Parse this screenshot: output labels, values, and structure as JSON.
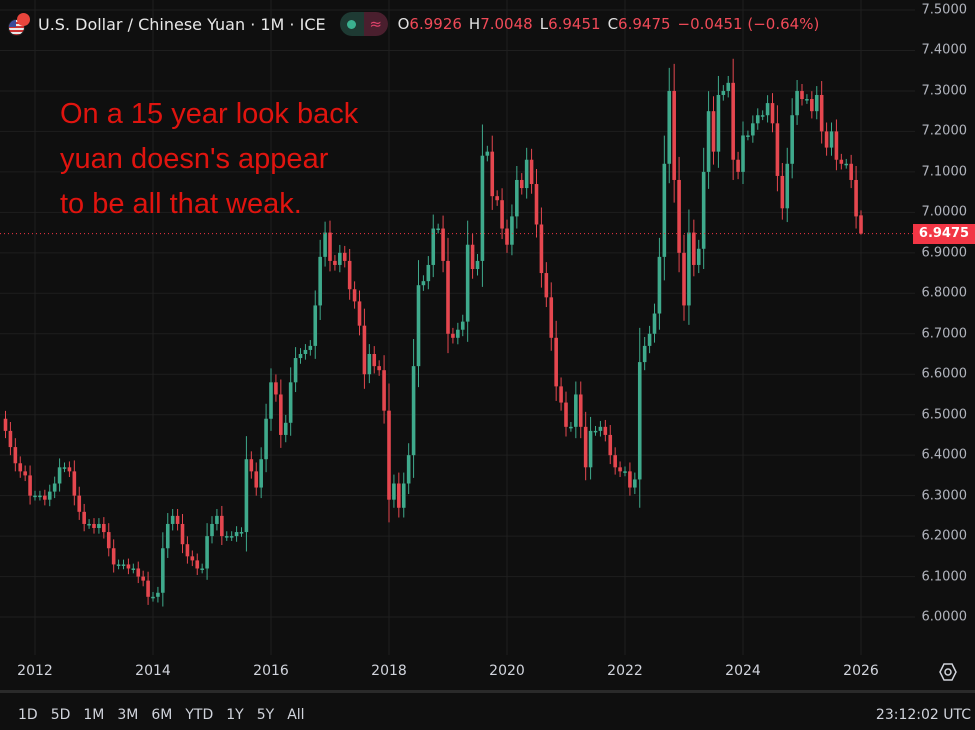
{
  "header": {
    "title": "U.S. Dollar / Chinese Yuan · 1M · ICE",
    "legend_icons": [
      "market-open-dot-icon",
      "approx-data-icon"
    ],
    "ohlc": [
      {
        "key": "O",
        "value": "6.9926"
      },
      {
        "key": "H",
        "value": "7.0048"
      },
      {
        "key": "L",
        "value": "6.9451"
      },
      {
        "key": "C",
        "value": "6.9475"
      }
    ],
    "change": "−0.0451 (−0.64%)"
  },
  "annotation": [
    "On a 15 year look back",
    "yuan doesn's appear",
    "to be all that weak."
  ],
  "price_axis": {
    "ticks": [
      "7.5000",
      "7.4000",
      "7.3000",
      "7.2000",
      "7.1000",
      "7.0000",
      "6.9000",
      "6.8000",
      "6.7000",
      "6.6000",
      "6.5000",
      "6.4000",
      "6.3000",
      "6.2000",
      "6.1000",
      "6.0000"
    ],
    "last_price": "6.9475"
  },
  "time_axis": {
    "ticks": [
      "2012",
      "2014",
      "2016",
      "2018",
      "2020",
      "2022",
      "2024",
      "2026"
    ]
  },
  "range_buttons": [
    "1D",
    "5D",
    "1M",
    "3M",
    "6M",
    "YTD",
    "1Y",
    "5Y",
    "All"
  ],
  "clock": "23:12:02 UTC",
  "colors": {
    "up": "#3faa8c",
    "down": "#e5474f",
    "annotation": "#e0140f",
    "background": "#0f0f0f"
  },
  "chart_data": {
    "type": "candlestick",
    "interval": "1M",
    "start_month": "2011-07",
    "end_month": "2026-01",
    "ylim": [
      6.0,
      7.5
    ],
    "grid": true,
    "first_open": 6.49,
    "closes": [
      6.46,
      6.42,
      6.38,
      6.36,
      6.35,
      6.3,
      6.3,
      6.3,
      6.29,
      6.31,
      6.33,
      6.37,
      6.37,
      6.36,
      6.3,
      6.26,
      6.23,
      6.23,
      6.22,
      6.23,
      6.21,
      6.17,
      6.13,
      6.13,
      6.13,
      6.12,
      6.12,
      6.1,
      6.09,
      6.05,
      6.05,
      6.06,
      6.17,
      6.23,
      6.25,
      6.23,
      6.18,
      6.15,
      6.14,
      6.12,
      6.12,
      6.2,
      6.23,
      6.25,
      6.2,
      6.2,
      6.2,
      6.21,
      6.21,
      6.39,
      6.36,
      6.32,
      6.39,
      6.49,
      6.58,
      6.55,
      6.45,
      6.48,
      6.58,
      6.64,
      6.65,
      6.66,
      6.67,
      6.77,
      6.89,
      6.95,
      6.88,
      6.87,
      6.9,
      6.88,
      6.81,
      6.78,
      6.72,
      6.6,
      6.65,
      6.62,
      6.61,
      6.51,
      6.29,
      6.33,
      6.27,
      6.33,
      6.4,
      6.62,
      6.82,
      6.83,
      6.87,
      6.96,
      6.96,
      6.88,
      6.7,
      6.69,
      6.71,
      6.73,
      6.92,
      6.86,
      6.88,
      7.14,
      7.15,
      7.04,
      7.03,
      6.96,
      6.92,
      6.99,
      7.08,
      7.06,
      7.13,
      7.07,
      6.97,
      6.85,
      6.79,
      6.69,
      6.57,
      6.53,
      6.47,
      6.47,
      6.55,
      6.47,
      6.37,
      6.46,
      6.46,
      6.47,
      6.45,
      6.4,
      6.37,
      6.36,
      6.36,
      6.32,
      6.34,
      6.63,
      6.67,
      6.7,
      6.75,
      6.89,
      7.12,
      7.3,
      7.08,
      6.9,
      6.77,
      6.95,
      6.87,
      6.91,
      7.1,
      7.25,
      7.15,
      7.29,
      7.3,
      7.32,
      7.13,
      7.1,
      7.19,
      7.19,
      7.22,
      7.24,
      7.24,
      7.27,
      7.22,
      7.09,
      7.01,
      7.12,
      7.24,
      7.3,
      7.28,
      7.28,
      7.25,
      7.29,
      7.2,
      7.16,
      7.2,
      7.13,
      7.12,
      7.12,
      7.08,
      6.99,
      6.9475
    ],
    "last_candle": {
      "open": 6.9926,
      "high": 7.0048,
      "low": 6.9451,
      "close": 6.9475
    }
  }
}
